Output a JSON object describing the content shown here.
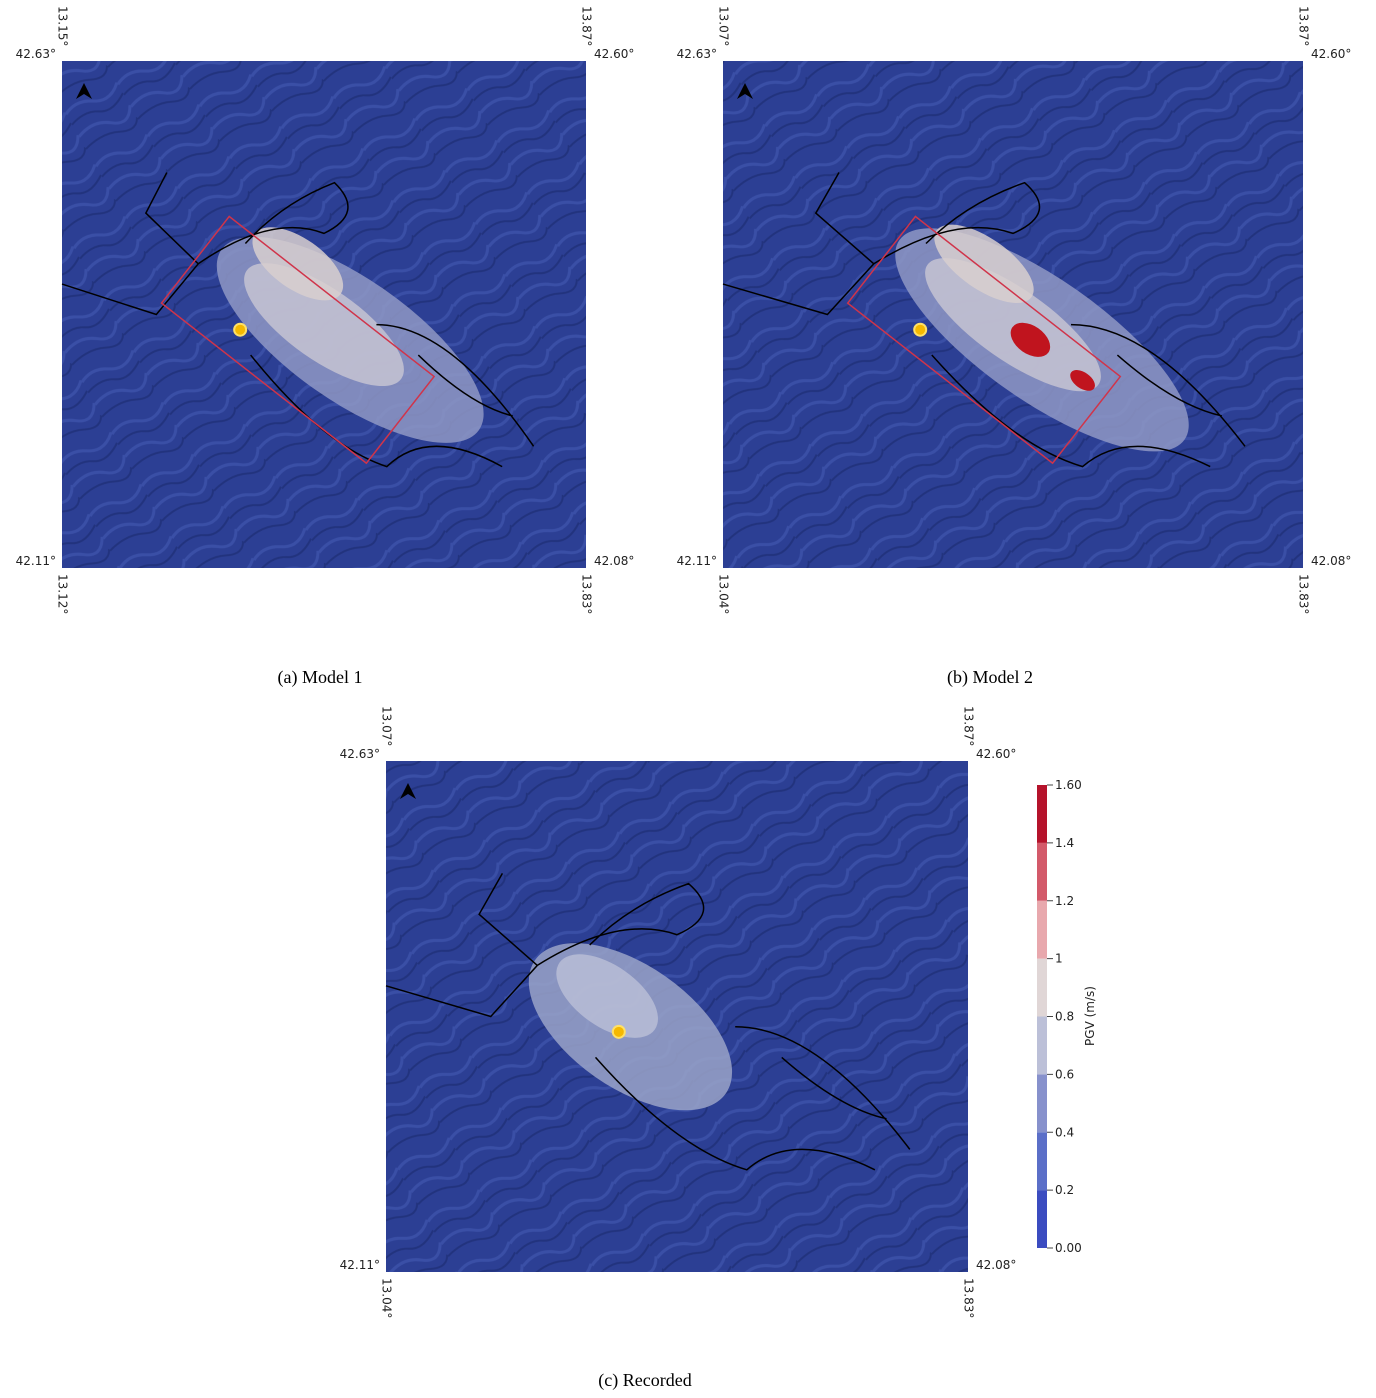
{
  "panels": [
    {
      "caption": "(a) Model 1",
      "top_left_lon": "13.15°",
      "top_left_lat": "42.63°",
      "top_right_lon": "13.87°",
      "top_right_lat": "42.60°",
      "bottom_left_lat": "42.11°",
      "bottom_left_lon": "13.12°",
      "bottom_right_lat": "42.08°",
      "bottom_right_lon": "13.83°"
    },
    {
      "caption": "(b) Model 2",
      "top_left_lon": "13.07°",
      "top_left_lat": "42.63°",
      "top_right_lon": "13.87°",
      "top_right_lat": "42.60°",
      "bottom_left_lat": "42.11°",
      "bottom_left_lon": "13.04°",
      "bottom_right_lat": "42.08°",
      "bottom_right_lon": "13.83°"
    },
    {
      "caption": "(c) Recorded",
      "top_left_lon": "13.07°",
      "top_left_lat": "42.63°",
      "top_right_lon": "13.87°",
      "top_right_lat": "42.60°",
      "bottom_left_lat": "42.11°",
      "bottom_left_lon": "13.04°",
      "bottom_right_lat": "42.08°",
      "bottom_right_lon": "13.83°"
    }
  ],
  "colorbar": {
    "label": "PGV (m/s)",
    "ticks": [
      "0.00",
      "0.2",
      "0.4",
      "0.6",
      "0.8",
      "1",
      "1.2",
      "1.4",
      "1.60"
    ]
  }
}
